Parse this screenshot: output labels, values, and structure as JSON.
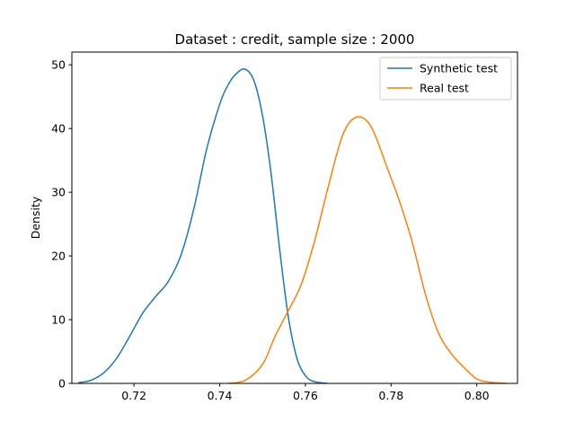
{
  "chart_data": {
    "type": "line",
    "title": "Dataset : credit, sample size : 2000",
    "xlabel": "",
    "ylabel": "Density",
    "xlim": [
      0.7055,
      0.8095
    ],
    "ylim": [
      0,
      52
    ],
    "xticks": [
      0.72,
      0.74,
      0.76,
      0.78,
      0.8
    ],
    "xtick_labels": [
      "0.72",
      "0.74",
      "0.76",
      "0.78",
      "0.80"
    ],
    "yticks": [
      0,
      10,
      20,
      30,
      40,
      50
    ],
    "ytick_labels": [
      "0",
      "10",
      "20",
      "30",
      "40",
      "50"
    ],
    "grid": false,
    "legend_position": "top-right",
    "series": [
      {
        "name": "Synthetic test",
        "color": "#1f77b4",
        "x": [
          0.707,
          0.71,
          0.713,
          0.716,
          0.719,
          0.722,
          0.725,
          0.728,
          0.731,
          0.734,
          0.737,
          0.74,
          0.742,
          0.744,
          0.746,
          0.748,
          0.75,
          0.752,
          0.754,
          0.756,
          0.758,
          0.76,
          0.762,
          0.765
        ],
        "y": [
          0.1,
          0.5,
          1.7,
          4.0,
          7.4,
          11.0,
          13.6,
          16.0,
          20.2,
          27.5,
          36.9,
          43.8,
          46.9,
          48.7,
          49.3,
          47.5,
          42.0,
          32.9,
          21.0,
          10.5,
          4.0,
          1.2,
          0.3,
          0.0
        ]
      },
      {
        "name": "Real test",
        "color": "#ff7f0e",
        "x": [
          0.742,
          0.746,
          0.75,
          0.753,
          0.756,
          0.759,
          0.762,
          0.765,
          0.768,
          0.77,
          0.772,
          0.774,
          0.776,
          0.779,
          0.782,
          0.785,
          0.788,
          0.791,
          0.794,
          0.797,
          0.8,
          0.803,
          0.807
        ],
        "y": [
          0.0,
          0.5,
          3.0,
          7.5,
          11.4,
          15.5,
          22.0,
          30.0,
          37.6,
          40.7,
          41.8,
          41.4,
          39.4,
          34.0,
          28.5,
          22.0,
          14.0,
          8.0,
          4.7,
          2.5,
          0.7,
          0.2,
          0.0
        ]
      }
    ]
  }
}
